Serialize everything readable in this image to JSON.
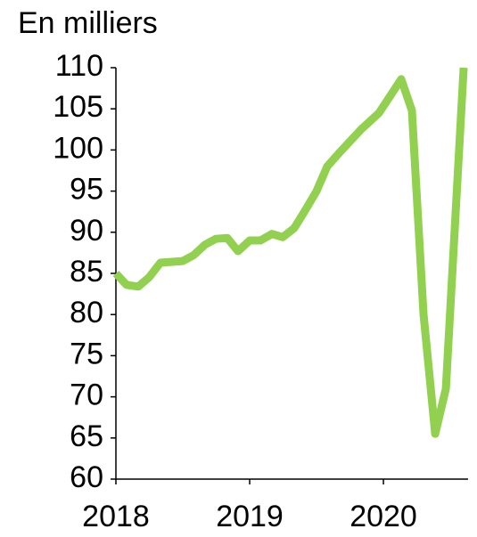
{
  "chart_data": {
    "type": "line",
    "title": "En milliers",
    "x": [
      2018.0,
      2018.08,
      2018.167,
      2018.247,
      2018.333,
      2018.5,
      2018.58,
      2018.667,
      2018.747,
      2018.833,
      2018.913,
      2019.0,
      2019.08,
      2019.167,
      2019.247,
      2019.333,
      2019.413,
      2019.5,
      2019.58,
      2019.667,
      2019.833,
      2019.967,
      2020.133,
      2020.213,
      2020.3,
      2020.387,
      2020.467,
      2020.6
    ],
    "series": [
      {
        "name": "En milliers",
        "color": "#92d050",
        "values": [
          85,
          83.6,
          83.4,
          84.5,
          86.3,
          86.5,
          87.2,
          88.5,
          89.2,
          89.3,
          87.7,
          89,
          89,
          89.8,
          89.4,
          90.5,
          92.6,
          95,
          98,
          99.6,
          102.5,
          104.5,
          108.6,
          104.8,
          80,
          65.5,
          71,
          110
        ]
      }
    ],
    "xlim": [
      2018,
      2020.633
    ],
    "xticks": [
      2018,
      2019,
      2020
    ],
    "ylim": [
      60,
      110
    ],
    "yticks": [
      60,
      65,
      70,
      75,
      80,
      85,
      90,
      95,
      100,
      105,
      110
    ]
  }
}
